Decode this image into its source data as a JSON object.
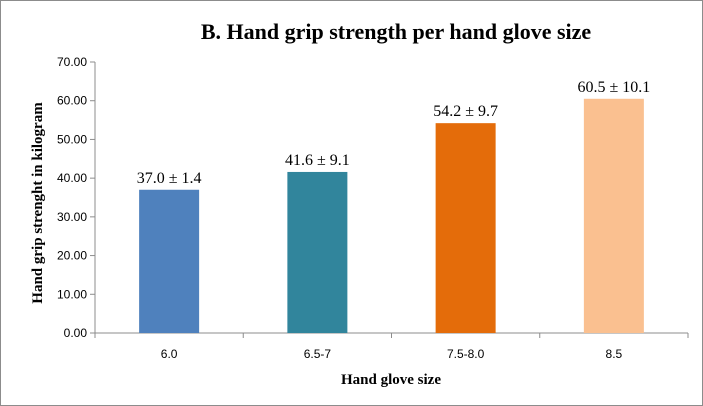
{
  "chart_data": {
    "type": "bar",
    "title": "B. Hand grip strength per hand glove size",
    "xlabel": "Hand glove size",
    "ylabel": "Hand grip strenght in kilogram",
    "categories": [
      "6.0",
      "6.5-7",
      "7.5-8.0",
      "8.5"
    ],
    "values": [
      37.0,
      41.6,
      54.2,
      60.5
    ],
    "data_labels": [
      "37.0 ± 1.4",
      "41.6 ± 9.1",
      "54.2 ± 9.7",
      "60.5 ± 10.1"
    ],
    "bar_colors": [
      "#4f81bd",
      "#31859c",
      "#e46c0a",
      "#fac090"
    ],
    "ylim": [
      0,
      70
    ],
    "yticks": [
      "0.00",
      "10.00",
      "20.00",
      "30.00",
      "40.00",
      "50.00",
      "60.00",
      "70.00"
    ],
    "grid": false,
    "legend": "none"
  }
}
